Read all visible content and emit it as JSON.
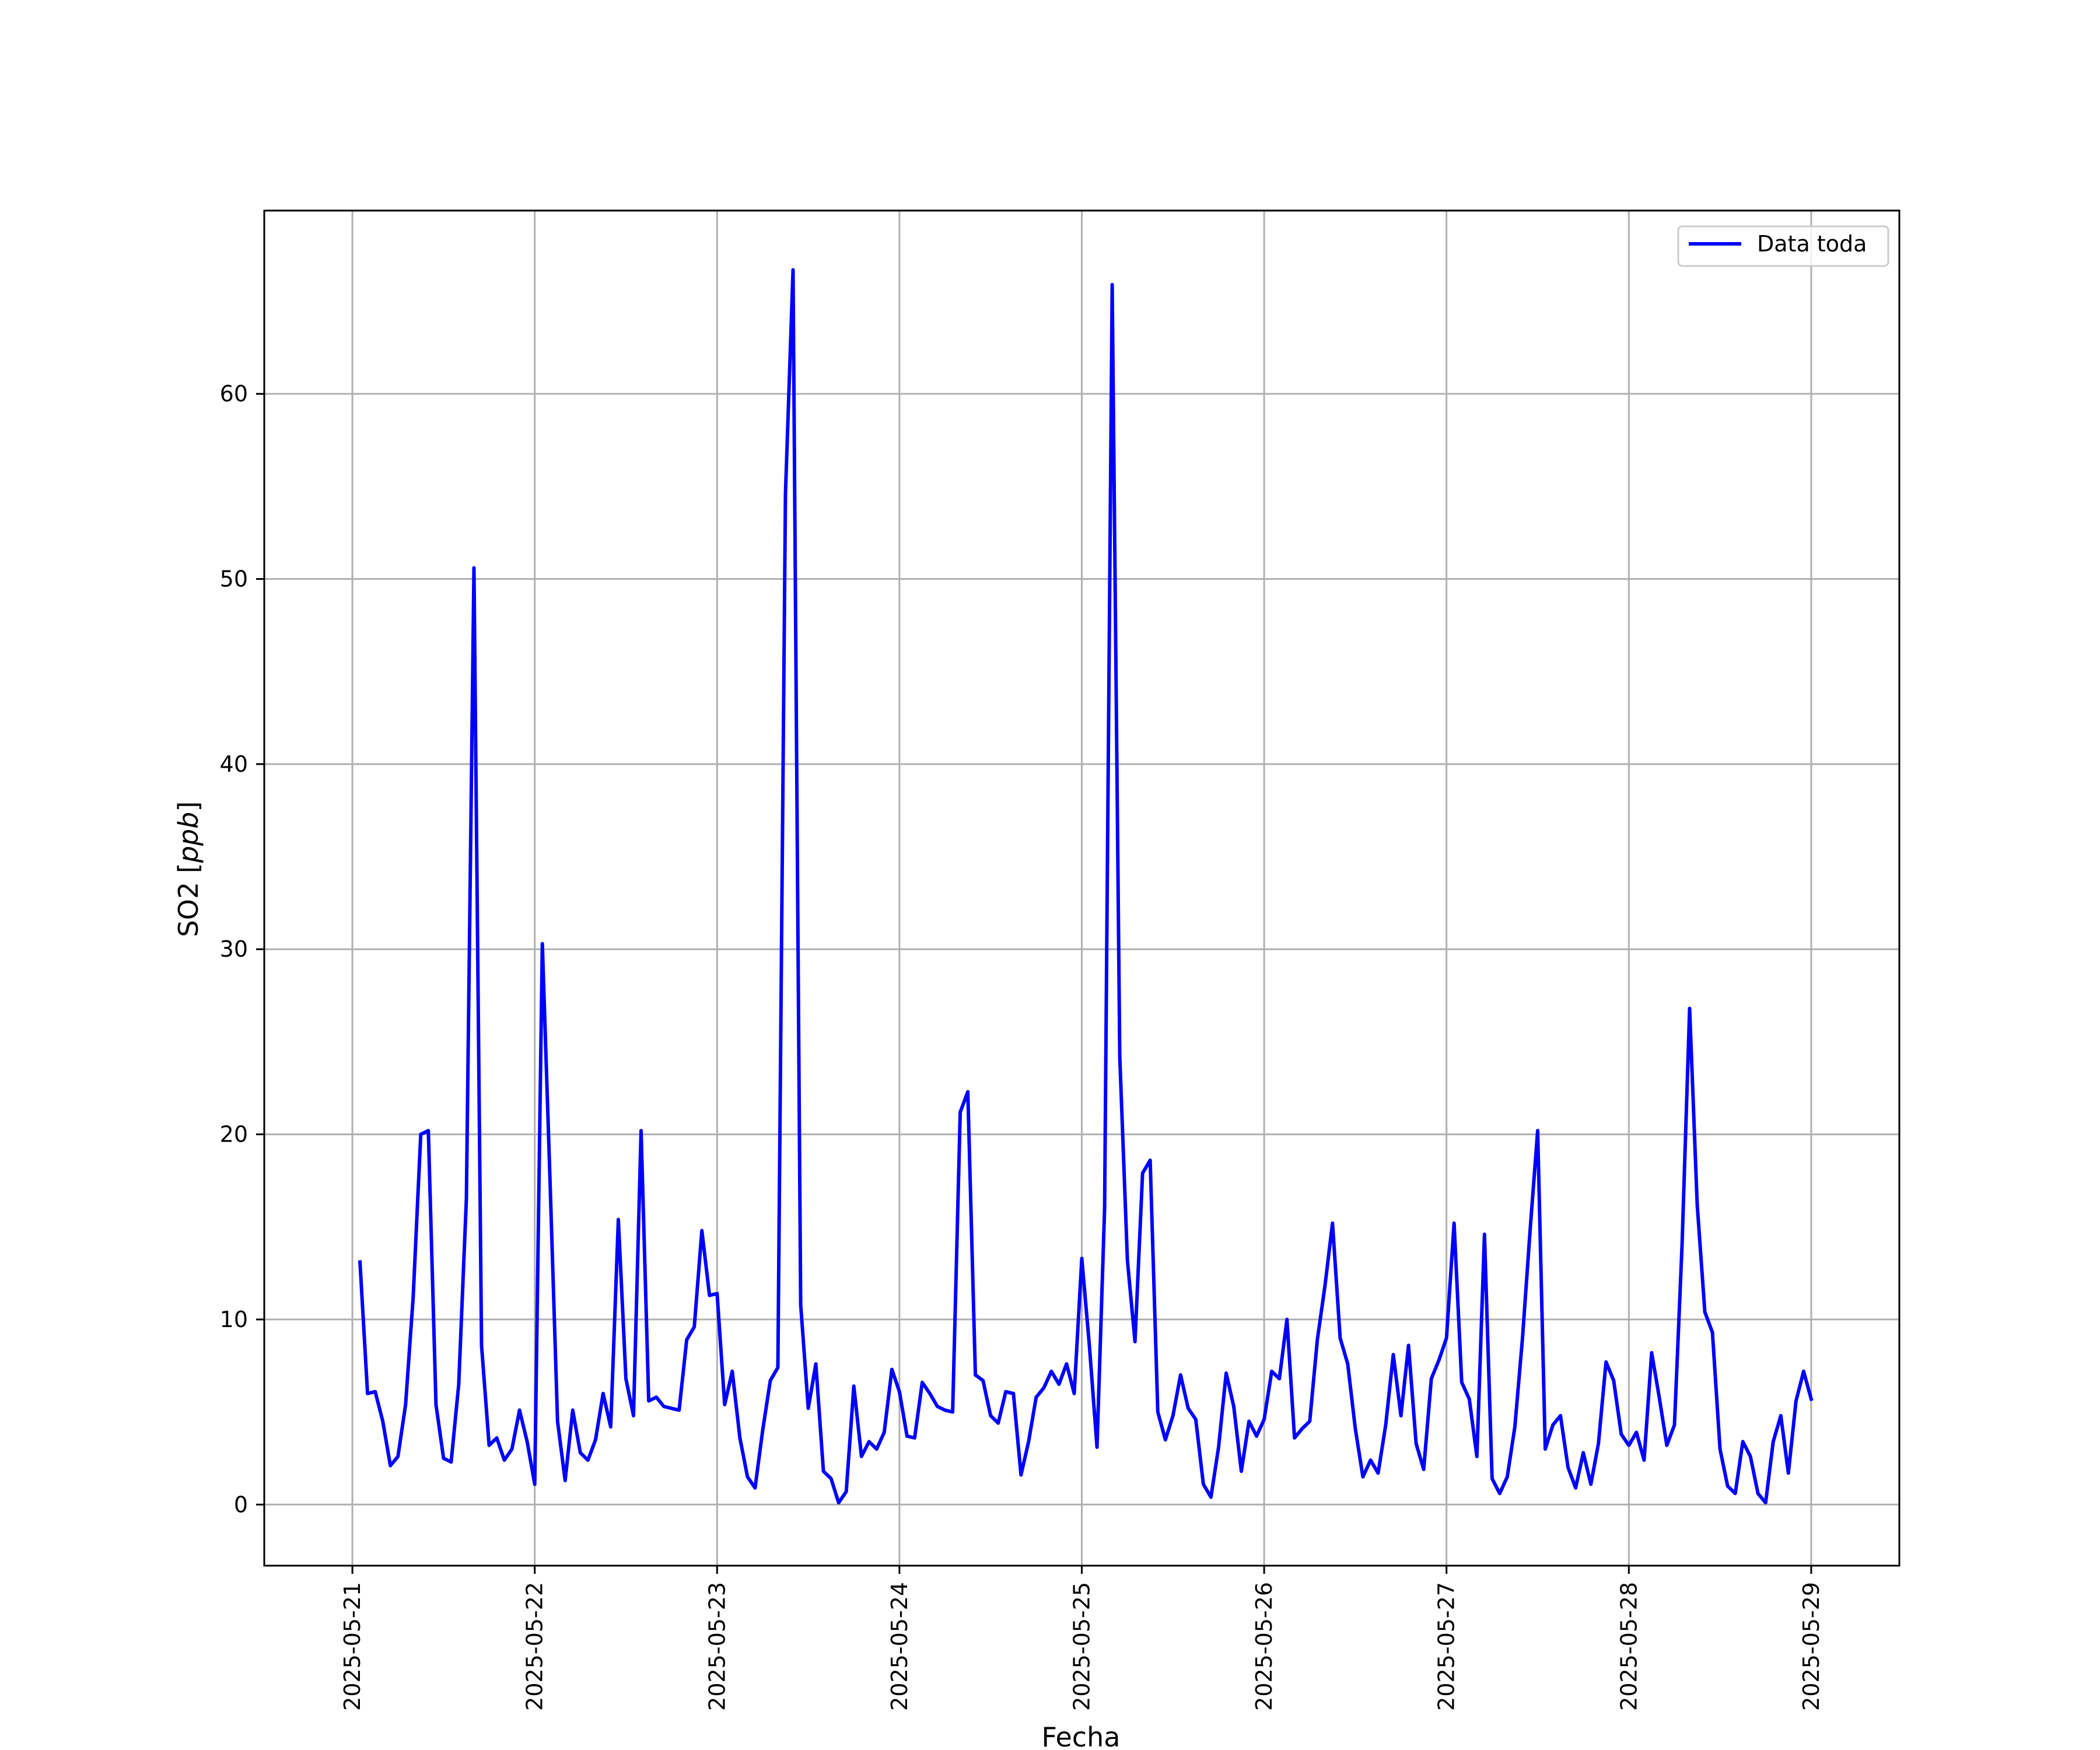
{
  "chart_data": {
    "type": "line",
    "xlabel": "Fecha",
    "ylabel": "SO2",
    "ylabel_unit": "ppb",
    "x_ticks": [
      "2025-05-21",
      "2025-05-22",
      "2025-05-23",
      "2025-05-24",
      "2025-05-25",
      "2025-05-26",
      "2025-05-27",
      "2025-05-28",
      "2025-05-29"
    ],
    "y_ticks": [
      0,
      10,
      20,
      30,
      40,
      50,
      60
    ],
    "xlim": [
      "2025-05-20 12:24",
      "2025-05-29 11:36"
    ],
    "ylim": [
      -3.3,
      69.9
    ],
    "grid": true,
    "legend_position": "top-right",
    "series": [
      {
        "name": "Data toda",
        "color": "#0000ff",
        "x": [
          "2025-05-21 01:00",
          "2025-05-21 02:00",
          "2025-05-21 03:00",
          "2025-05-21 04:00",
          "2025-05-21 05:00",
          "2025-05-21 06:00",
          "2025-05-21 07:00",
          "2025-05-21 08:00",
          "2025-05-21 09:00",
          "2025-05-21 10:00",
          "2025-05-21 11:00",
          "2025-05-21 12:00",
          "2025-05-21 13:00",
          "2025-05-21 14:00",
          "2025-05-21 15:00",
          "2025-05-21 16:00",
          "2025-05-21 17:00",
          "2025-05-21 18:00",
          "2025-05-21 19:00",
          "2025-05-21 20:00",
          "2025-05-21 21:00",
          "2025-05-21 22:00",
          "2025-05-21 23:00",
          "2025-05-22 00:00",
          "2025-05-22 01:00",
          "2025-05-22 02:00",
          "2025-05-22 03:00",
          "2025-05-22 04:00",
          "2025-05-22 05:00",
          "2025-05-22 06:00",
          "2025-05-22 07:00",
          "2025-05-22 08:00",
          "2025-05-22 09:00",
          "2025-05-22 10:00",
          "2025-05-22 11:00",
          "2025-05-22 12:00",
          "2025-05-22 13:00",
          "2025-05-22 14:00",
          "2025-05-22 15:00",
          "2025-05-22 16:00",
          "2025-05-22 17:00",
          "2025-05-22 18:00",
          "2025-05-22 19:00",
          "2025-05-22 20:00",
          "2025-05-22 21:00",
          "2025-05-22 22:00",
          "2025-05-22 23:00",
          "2025-05-23 00:00",
          "2025-05-23 01:00",
          "2025-05-23 02:00",
          "2025-05-23 03:00",
          "2025-05-23 04:00",
          "2025-05-23 05:00",
          "2025-05-23 06:00",
          "2025-05-23 07:00",
          "2025-05-23 08:00",
          "2025-05-23 09:00",
          "2025-05-23 10:00",
          "2025-05-23 11:00",
          "2025-05-23 12:00",
          "2025-05-23 13:00",
          "2025-05-23 14:00",
          "2025-05-23 15:00",
          "2025-05-23 16:00",
          "2025-05-23 17:00",
          "2025-05-23 18:00",
          "2025-05-23 19:00",
          "2025-05-23 20:00",
          "2025-05-23 21:00",
          "2025-05-23 22:00",
          "2025-05-23 23:00",
          "2025-05-24 00:00",
          "2025-05-24 01:00",
          "2025-05-24 02:00",
          "2025-05-24 03:00",
          "2025-05-24 04:00",
          "2025-05-24 05:00",
          "2025-05-24 06:00",
          "2025-05-24 07:00",
          "2025-05-24 08:00",
          "2025-05-24 09:00",
          "2025-05-24 10:00",
          "2025-05-24 11:00",
          "2025-05-24 12:00",
          "2025-05-24 13:00",
          "2025-05-24 14:00",
          "2025-05-24 15:00",
          "2025-05-24 16:00",
          "2025-05-24 17:00",
          "2025-05-24 18:00",
          "2025-05-24 19:00",
          "2025-05-24 20:00",
          "2025-05-24 21:00",
          "2025-05-24 22:00",
          "2025-05-24 23:00",
          "2025-05-25 00:00",
          "2025-05-25 01:00",
          "2025-05-25 02:00",
          "2025-05-25 03:00",
          "2025-05-25 04:00",
          "2025-05-25 05:00",
          "2025-05-25 06:00",
          "2025-05-25 07:00",
          "2025-05-25 08:00",
          "2025-05-25 09:00",
          "2025-05-25 10:00",
          "2025-05-25 11:00",
          "2025-05-25 12:00",
          "2025-05-25 13:00",
          "2025-05-25 14:00",
          "2025-05-25 15:00",
          "2025-05-25 16:00",
          "2025-05-25 17:00",
          "2025-05-25 18:00",
          "2025-05-25 19:00",
          "2025-05-25 20:00",
          "2025-05-25 21:00",
          "2025-05-25 22:00",
          "2025-05-25 23:00",
          "2025-05-26 00:00",
          "2025-05-26 01:00",
          "2025-05-26 02:00",
          "2025-05-26 03:00",
          "2025-05-26 04:00",
          "2025-05-26 05:00",
          "2025-05-26 06:00",
          "2025-05-26 07:00",
          "2025-05-26 08:00",
          "2025-05-26 09:00",
          "2025-05-26 10:00",
          "2025-05-26 11:00",
          "2025-05-26 12:00",
          "2025-05-26 13:00",
          "2025-05-26 14:00",
          "2025-05-26 15:00",
          "2025-05-26 16:00",
          "2025-05-26 17:00",
          "2025-05-26 18:00",
          "2025-05-26 19:00",
          "2025-05-26 20:00",
          "2025-05-26 21:00",
          "2025-05-26 22:00",
          "2025-05-26 23:00",
          "2025-05-27 00:00",
          "2025-05-27 01:00",
          "2025-05-27 02:00",
          "2025-05-27 03:00",
          "2025-05-27 04:00",
          "2025-05-27 05:00",
          "2025-05-27 06:00",
          "2025-05-27 07:00",
          "2025-05-27 08:00",
          "2025-05-27 09:00",
          "2025-05-27 10:00",
          "2025-05-27 11:00",
          "2025-05-27 12:00",
          "2025-05-27 13:00",
          "2025-05-27 14:00",
          "2025-05-27 15:00",
          "2025-05-27 16:00",
          "2025-05-27 17:00",
          "2025-05-27 18:00",
          "2025-05-27 19:00",
          "2025-05-27 20:00",
          "2025-05-27 21:00",
          "2025-05-27 22:00",
          "2025-05-27 23:00",
          "2025-05-28 00:00",
          "2025-05-28 01:00",
          "2025-05-28 02:00",
          "2025-05-28 03:00",
          "2025-05-28 04:00",
          "2025-05-28 05:00",
          "2025-05-28 06:00",
          "2025-05-28 07:00",
          "2025-05-28 08:00",
          "2025-05-28 09:00",
          "2025-05-28 10:00",
          "2025-05-28 11:00",
          "2025-05-28 12:00",
          "2025-05-28 13:00",
          "2025-05-28 14:00",
          "2025-05-28 15:00",
          "2025-05-28 16:00",
          "2025-05-28 17:00",
          "2025-05-28 18:00",
          "2025-05-28 19:00",
          "2025-05-28 20:00",
          "2025-05-28 21:00",
          "2025-05-28 22:00",
          "2025-05-28 23:00",
          "2025-05-29 00:00"
        ],
        "values": [
          13.1,
          6.0,
          6.1,
          4.5,
          2.1,
          2.6,
          5.4,
          11.2,
          20.0,
          20.2,
          5.4,
          2.5,
          2.3,
          6.5,
          16.5,
          50.6,
          8.6,
          3.2,
          3.6,
          2.4,
          3.0,
          5.1,
          3.4,
          1.1,
          30.3,
          17.7,
          4.5,
          1.3,
          5.1,
          2.8,
          2.4,
          3.5,
          6.0,
          4.2,
          15.4,
          6.8,
          4.8,
          20.2,
          5.6,
          5.8,
          5.3,
          5.2,
          5.1,
          8.9,
          9.6,
          14.8,
          11.3,
          11.4,
          5.4,
          7.2,
          3.6,
          1.5,
          0.9,
          4.0,
          6.7,
          7.4,
          54.6,
          66.7,
          10.8,
          5.2,
          7.6,
          1.8,
          1.4,
          0.1,
          0.7,
          6.4,
          2.6,
          3.4,
          3.0,
          3.9,
          7.3,
          6.1,
          3.7,
          3.6,
          6.6,
          6.0,
          5.3,
          5.1,
          5.0,
          21.2,
          22.3,
          7.0,
          6.7,
          4.8,
          4.4,
          6.1,
          6.0,
          1.6,
          3.4,
          5.8,
          6.3,
          7.2,
          6.5,
          7.6,
          6.0,
          13.3,
          8.6,
          3.1,
          16.0,
          65.9,
          24.2,
          13.2,
          8.8,
          17.9,
          18.6,
          5.0,
          3.5,
          4.8,
          7.0,
          5.2,
          4.6,
          1.1,
          0.4,
          3.1,
          7.1,
          5.3,
          1.8,
          4.5,
          3.7,
          4.6,
          7.2,
          6.8,
          10.0,
          3.6,
          4.1,
          4.5,
          8.9,
          11.8,
          15.2,
          9.0,
          7.6,
          4.1,
          1.5,
          2.4,
          1.7,
          4.3,
          8.1,
          4.8,
          8.6,
          3.3,
          1.9,
          6.8,
          7.8,
          9.0,
          15.2,
          6.6,
          5.7,
          2.6,
          14.6,
          1.4,
          0.6,
          1.5,
          4.2,
          9.0,
          14.8,
          20.2,
          3.0,
          4.3,
          4.8,
          2.0,
          0.9,
          2.8,
          1.1,
          3.3,
          7.7,
          6.7,
          3.8,
          3.2,
          3.9,
          2.4,
          8.2,
          5.8,
          3.2,
          4.3,
          14.0,
          26.8,
          16.2,
          10.4,
          9.3,
          3.0,
          1.0,
          0.6,
          3.4,
          2.6,
          0.6,
          0.1,
          3.4,
          4.8,
          1.7,
          5.6,
          7.2,
          5.7
        ]
      }
    ]
  }
}
